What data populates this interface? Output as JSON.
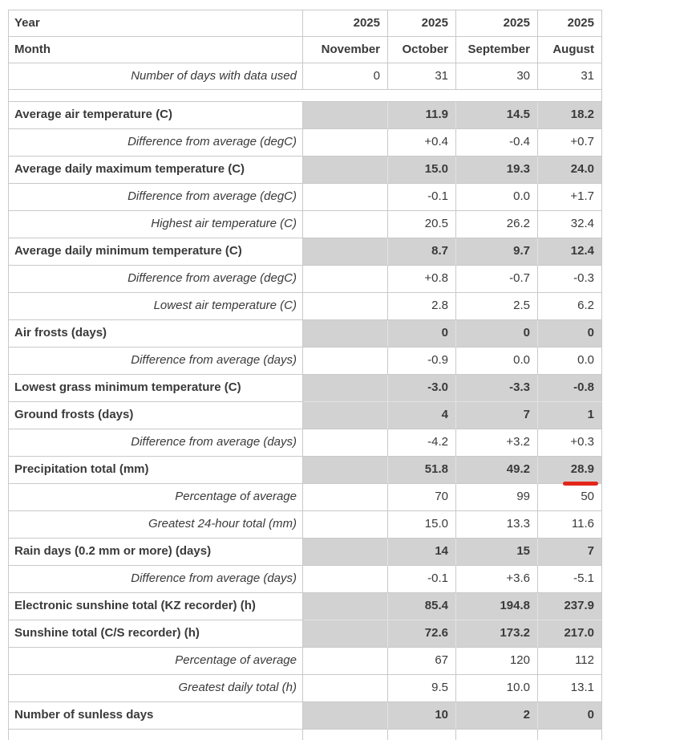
{
  "colors": {
    "row_shade": "#d2d2d2",
    "border": "#c9c9c9",
    "text": "#3a3a3a",
    "annotation_red": "#e2261a"
  },
  "annotation": {
    "type": "red-underline",
    "row": "Precipitation total (mm)",
    "column": "August",
    "value": "28.9"
  },
  "table": {
    "rows": [
      {
        "label": "Year",
        "label_style": "bold",
        "value_style": "bold",
        "shaded": false,
        "header": true,
        "values": [
          "2025",
          "2025",
          "2025",
          "2025"
        ]
      },
      {
        "label": "Month",
        "label_style": "bold",
        "value_style": "bold",
        "shaded": false,
        "header": true,
        "values": [
          "November",
          "October",
          "September",
          "August"
        ]
      },
      {
        "label": "Number of days with data used",
        "label_style": "italic",
        "value_style": "normal",
        "shaded": false,
        "header": true,
        "values": [
          "0",
          "31",
          "30",
          "31"
        ]
      },
      {
        "spacer": true
      },
      {
        "label": "Average air temperature (C)",
        "label_style": "bold",
        "shaded": true,
        "values": [
          "",
          "11.9",
          "14.5",
          "18.2"
        ]
      },
      {
        "label": "Difference from average (degC)",
        "label_style": "italic",
        "shaded": false,
        "values": [
          "",
          "+0.4",
          "-0.4",
          "+0.7"
        ]
      },
      {
        "label": "Average daily maximum temperature (C)",
        "label_style": "bold",
        "shaded": true,
        "values": [
          "",
          "15.0",
          "19.3",
          "24.0"
        ]
      },
      {
        "label": "Difference from average (degC)",
        "label_style": "italic",
        "shaded": false,
        "values": [
          "",
          "-0.1",
          "0.0",
          "+1.7"
        ]
      },
      {
        "label": "Highest air temperature (C)",
        "label_style": "italic",
        "shaded": false,
        "values": [
          "",
          "20.5",
          "26.2",
          "32.4"
        ]
      },
      {
        "label": "Average daily minimum temperature (C)",
        "label_style": "bold",
        "shaded": true,
        "values": [
          "",
          "8.7",
          "9.7",
          "12.4"
        ]
      },
      {
        "label": "Difference from average (degC)",
        "label_style": "italic",
        "shaded": false,
        "values": [
          "",
          "+0.8",
          "-0.7",
          "-0.3"
        ]
      },
      {
        "label": "Lowest air temperature (C)",
        "label_style": "italic",
        "shaded": false,
        "values": [
          "",
          "2.8",
          "2.5",
          "6.2"
        ]
      },
      {
        "label": "Air frosts (days)",
        "label_style": "bold",
        "shaded": true,
        "values": [
          "",
          "0",
          "0",
          "0"
        ]
      },
      {
        "label": "Difference from average (days)",
        "label_style": "italic",
        "shaded": false,
        "values": [
          "",
          "-0.9",
          "0.0",
          "0.0"
        ]
      },
      {
        "label": "Lowest grass minimum temperature (C)",
        "label_style": "bold",
        "shaded": true,
        "values": [
          "",
          "-3.0",
          "-3.3",
          "-0.8"
        ]
      },
      {
        "label": "Ground frosts (days)",
        "label_style": "bold",
        "shaded": true,
        "values": [
          "",
          "4",
          "7",
          "1"
        ]
      },
      {
        "label": "Difference from average (days)",
        "label_style": "italic",
        "shaded": false,
        "values": [
          "",
          "-4.2",
          "+3.2",
          "+0.3"
        ]
      },
      {
        "label": "Precipitation total (mm)",
        "label_style": "bold",
        "shaded": true,
        "values": [
          "",
          "51.8",
          "49.2",
          "28.9"
        ],
        "annotation": {
          "col": 3,
          "type": "red-underline"
        }
      },
      {
        "label": "Percentage of average",
        "label_style": "italic",
        "shaded": false,
        "values": [
          "",
          "70",
          "99",
          "50"
        ]
      },
      {
        "label": "Greatest 24-hour total (mm)",
        "label_style": "italic",
        "shaded": false,
        "values": [
          "",
          "15.0",
          "13.3",
          "11.6"
        ]
      },
      {
        "label": "Rain days (0.2 mm or more) (days)",
        "label_style": "bold",
        "shaded": true,
        "values": [
          "",
          "14",
          "15",
          "7"
        ]
      },
      {
        "label": "Difference from average (days)",
        "label_style": "italic",
        "shaded": false,
        "values": [
          "",
          "-0.1",
          "+3.6",
          "-5.1"
        ]
      },
      {
        "label": "Electronic sunshine total (KZ recorder) (h)",
        "label_style": "bold",
        "shaded": true,
        "values": [
          "",
          "85.4",
          "194.8",
          "237.9"
        ]
      },
      {
        "label": "Sunshine total (C/S recorder) (h)",
        "label_style": "bold",
        "shaded": true,
        "values": [
          "",
          "72.6",
          "173.2",
          "217.0"
        ]
      },
      {
        "label": "Percentage of average",
        "label_style": "italic",
        "shaded": false,
        "values": [
          "",
          "67",
          "120",
          "112"
        ]
      },
      {
        "label": "Greatest daily total (h)",
        "label_style": "italic",
        "shaded": false,
        "values": [
          "",
          "9.5",
          "10.0",
          "13.1"
        ]
      },
      {
        "label": "Number of sunless days",
        "label_style": "bold",
        "shaded": true,
        "values": [
          "",
          "10",
          "2",
          "0"
        ]
      }
    ]
  }
}
